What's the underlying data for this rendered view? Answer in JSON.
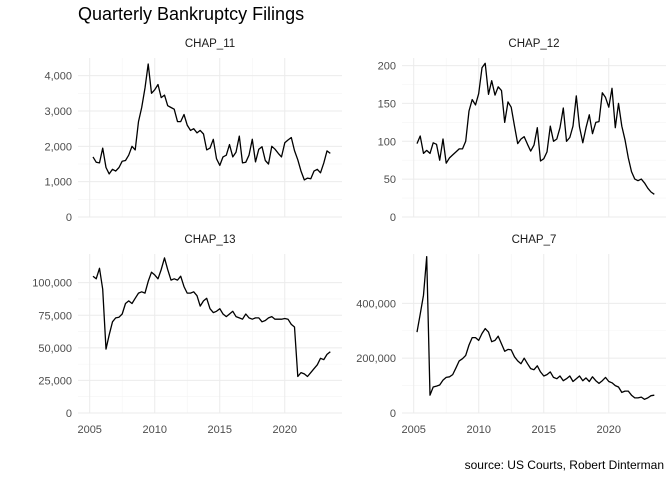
{
  "title": "Quarterly Bankruptcy Filings",
  "caption": "source: US Courts, Robert Dinterman",
  "chart_data": {
    "type": "line",
    "facet_layout": "2x2",
    "shared_x_per_column": true,
    "x_ticks": [
      2005,
      2010,
      2015,
      2020
    ],
    "grid": true,
    "theme": "minimal",
    "panels": [
      {
        "name": "CHAP_11",
        "ylim": [
          0,
          4500
        ],
        "y_ticks": [
          0,
          1000,
          2000,
          3000,
          4000
        ],
        "y_tick_labels": [
          "0",
          "1,000",
          "2,000",
          "3,000",
          "4,000"
        ],
        "x": [
          2005.25,
          2005.5,
          2005.75,
          2006,
          2006.25,
          2006.5,
          2006.75,
          2007,
          2007.25,
          2007.5,
          2007.75,
          2008,
          2008.25,
          2008.5,
          2008.75,
          2009,
          2009.25,
          2009.5,
          2009.75,
          2010,
          2010.25,
          2010.5,
          2010.75,
          2011,
          2011.25,
          2011.5,
          2011.75,
          2012,
          2012.25,
          2012.5,
          2012.75,
          2013,
          2013.25,
          2013.5,
          2013.75,
          2014,
          2014.25,
          2014.5,
          2014.75,
          2015,
          2015.25,
          2015.5,
          2015.75,
          2016,
          2016.25,
          2016.5,
          2016.75,
          2017,
          2017.25,
          2017.5,
          2017.75,
          2018,
          2018.25,
          2018.5,
          2018.75,
          2019,
          2019.25,
          2019.5,
          2019.75,
          2020,
          2020.25,
          2020.5,
          2020.75,
          2021,
          2021.25,
          2021.5,
          2021.75,
          2022,
          2022.25,
          2022.5,
          2022.75,
          2023,
          2023.25,
          2023.5
        ],
        "values": [
          1700,
          1550,
          1530,
          1950,
          1400,
          1220,
          1350,
          1300,
          1400,
          1580,
          1600,
          1750,
          2000,
          1900,
          2700,
          3100,
          3650,
          4330,
          3500,
          3600,
          3750,
          3380,
          3450,
          3150,
          3100,
          3050,
          2700,
          2700,
          2900,
          2600,
          2450,
          2500,
          2380,
          2450,
          2350,
          1900,
          1950,
          2200,
          1650,
          1460,
          1700,
          1750,
          2050,
          1700,
          1830,
          2290,
          1530,
          1550,
          1750,
          2200,
          1560,
          1920,
          1990,
          1600,
          1500,
          2000,
          1920,
          1800,
          1700,
          2100,
          2180,
          2250,
          1880,
          1620,
          1300,
          1050,
          1100,
          1080,
          1300,
          1350,
          1250,
          1530,
          1870,
          1800
        ]
      },
      {
        "name": "CHAP_12",
        "ylim": [
          0,
          210
        ],
        "y_ticks": [
          0,
          50,
          100,
          150,
          200
        ],
        "y_tick_labels": [
          "0",
          "50",
          "100",
          "150",
          "200"
        ],
        "x": [
          2005.25,
          2005.5,
          2005.75,
          2006,
          2006.25,
          2006.5,
          2006.75,
          2007,
          2007.25,
          2007.5,
          2007.75,
          2008,
          2008.25,
          2008.5,
          2008.75,
          2009,
          2009.25,
          2009.5,
          2009.75,
          2010,
          2010.25,
          2010.5,
          2010.75,
          2011,
          2011.25,
          2011.5,
          2011.75,
          2012,
          2012.25,
          2012.5,
          2012.75,
          2013,
          2013.25,
          2013.5,
          2013.75,
          2014,
          2014.25,
          2014.5,
          2014.75,
          2015,
          2015.25,
          2015.5,
          2015.75,
          2016,
          2016.25,
          2016.5,
          2016.75,
          2017,
          2017.25,
          2017.5,
          2017.75,
          2018,
          2018.25,
          2018.5,
          2018.75,
          2019,
          2019.25,
          2019.5,
          2019.75,
          2020,
          2020.25,
          2020.5,
          2020.75,
          2021,
          2021.25,
          2021.5,
          2021.75,
          2022,
          2022.25,
          2022.5,
          2022.75,
          2023,
          2023.25,
          2023.5
        ],
        "values": [
          97,
          107,
          84,
          88,
          84,
          98,
          96,
          75,
          103,
          71,
          78,
          82,
          86,
          90,
          90,
          100,
          140,
          155,
          148,
          163,
          197,
          203,
          162,
          180,
          161,
          172,
          167,
          125,
          152,
          145,
          120,
          97,
          103,
          106,
          96,
          87,
          95,
          118,
          74,
          77,
          86,
          120,
          100,
          103,
          118,
          144,
          100,
          105,
          120,
          160,
          119,
          98,
          118,
          135,
          110,
          125,
          126,
          164,
          158,
          145,
          170,
          118,
          150,
          120,
          102,
          78,
          60,
          50,
          48,
          50,
          45,
          38,
          33,
          30
        ]
      },
      {
        "name": "CHAP_13",
        "ylim": [
          0,
          122000
        ],
        "y_ticks": [
          0,
          25000,
          50000,
          75000,
          100000
        ],
        "y_tick_labels": [
          "0",
          "25,000",
          "50,000",
          "75,000",
          "100,000"
        ],
        "x": [
          2005.25,
          2005.5,
          2005.75,
          2006,
          2006.25,
          2006.5,
          2006.75,
          2007,
          2007.25,
          2007.5,
          2007.75,
          2008,
          2008.25,
          2008.5,
          2008.75,
          2009,
          2009.25,
          2009.5,
          2009.75,
          2010,
          2010.25,
          2010.5,
          2010.75,
          2011,
          2011.25,
          2011.5,
          2011.75,
          2012,
          2012.25,
          2012.5,
          2012.75,
          2013,
          2013.25,
          2013.5,
          2013.75,
          2014,
          2014.25,
          2014.5,
          2014.75,
          2015,
          2015.25,
          2015.5,
          2015.75,
          2016,
          2016.25,
          2016.5,
          2016.75,
          2017,
          2017.25,
          2017.5,
          2017.75,
          2018,
          2018.25,
          2018.5,
          2018.75,
          2019,
          2019.25,
          2019.5,
          2019.75,
          2020,
          2020.25,
          2020.5,
          2020.75,
          2021,
          2021.25,
          2021.5,
          2021.75,
          2022,
          2022.25,
          2022.5,
          2022.75,
          2023,
          2023.25,
          2023.5
        ],
        "values": [
          105000,
          103000,
          111000,
          95000,
          49000,
          60000,
          70000,
          73000,
          73500,
          76000,
          84000,
          86000,
          84000,
          88000,
          92000,
          93000,
          92000,
          101000,
          108000,
          106000,
          103000,
          110000,
          119000,
          110000,
          102000,
          103000,
          102000,
          105000,
          97000,
          92000,
          92000,
          93000,
          90000,
          82000,
          86000,
          88000,
          80000,
          77000,
          78000,
          80000,
          76000,
          74000,
          76000,
          78000,
          74000,
          73000,
          72000,
          76000,
          73000,
          72000,
          73000,
          73000,
          70000,
          71000,
          73000,
          74000,
          72000,
          72000,
          72000,
          72500,
          72000,
          68000,
          66000,
          28000,
          31000,
          30000,
          28000,
          31000,
          34000,
          37000,
          42000,
          41000,
          45000,
          47000
        ]
      },
      {
        "name": "CHAP_7",
        "ylim": [
          0,
          580000
        ],
        "y_ticks": [
          0,
          200000,
          400000
        ],
        "y_tick_labels": [
          "0",
          "200,000",
          "400,000"
        ],
        "x": [
          2005.25,
          2005.5,
          2005.75,
          2006,
          2006.25,
          2006.5,
          2006.75,
          2007,
          2007.25,
          2007.5,
          2007.75,
          2008,
          2008.25,
          2008.5,
          2008.75,
          2009,
          2009.25,
          2009.5,
          2009.75,
          2010,
          2010.25,
          2010.5,
          2010.75,
          2011,
          2011.25,
          2011.5,
          2011.75,
          2012,
          2012.25,
          2012.5,
          2012.75,
          2013,
          2013.25,
          2013.5,
          2013.75,
          2014,
          2014.25,
          2014.5,
          2014.75,
          2015,
          2015.25,
          2015.5,
          2015.75,
          2016,
          2016.25,
          2016.5,
          2016.75,
          2017,
          2017.25,
          2017.5,
          2017.75,
          2018,
          2018.25,
          2018.5,
          2018.75,
          2019,
          2019.25,
          2019.5,
          2019.75,
          2020,
          2020.25,
          2020.5,
          2020.75,
          2021,
          2021.25,
          2021.5,
          2021.75,
          2022,
          2022.25,
          2022.5,
          2022.75,
          2023,
          2023.25,
          2023.5
        ],
        "values": [
          295000,
          360000,
          430000,
          570000,
          65000,
          95000,
          98000,
          102000,
          120000,
          130000,
          132000,
          140000,
          165000,
          190000,
          198000,
          210000,
          248000,
          275000,
          275000,
          265000,
          290000,
          308000,
          295000,
          260000,
          265000,
          280000,
          252000,
          225000,
          232000,
          230000,
          205000,
          190000,
          180000,
          200000,
          180000,
          162000,
          158000,
          172000,
          150000,
          135000,
          140000,
          150000,
          130000,
          125000,
          135000,
          118000,
          125000,
          135000,
          115000,
          125000,
          135000,
          118000,
          128000,
          115000,
          132000,
          118000,
          108000,
          118000,
          130000,
          115000,
          110000,
          100000,
          95000,
          75000,
          80000,
          80000,
          65000,
          55000,
          55000,
          58000,
          50000,
          55000,
          63000,
          65000
        ]
      }
    ]
  }
}
